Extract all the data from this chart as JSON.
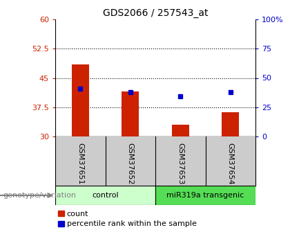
{
  "title": "GDS2066 / 257543_at",
  "samples": [
    "GSM37651",
    "GSM37652",
    "GSM37653",
    "GSM37654"
  ],
  "bar_values": [
    48.5,
    41.5,
    33.0,
    36.2
  ],
  "dot_values": [
    42.2,
    41.3,
    40.3,
    41.3
  ],
  "bar_color": "#cc2200",
  "dot_color": "#0000cc",
  "ylim_left": [
    30,
    60
  ],
  "ylim_right": [
    0,
    100
  ],
  "yticks_left": [
    30,
    37.5,
    45,
    52.5,
    60
  ],
  "yticks_right": [
    0,
    25,
    50,
    75,
    100
  ],
  "ytick_labels_left": [
    "30",
    "37.5",
    "45",
    "52.5",
    "60"
  ],
  "ytick_labels_right": [
    "0",
    "25",
    "50",
    "75",
    "100%"
  ],
  "hline_ticks": [
    37.5,
    45,
    52.5
  ],
  "groups": [
    {
      "label": "control",
      "indices": [
        0,
        1
      ],
      "color": "#ccffcc"
    },
    {
      "label": "miR319a transgenic",
      "indices": [
        2,
        3
      ],
      "color": "#55dd55"
    }
  ],
  "sample_box_color": "#cccccc",
  "legend_count_label": "count",
  "legend_pct_label": "percentile rank within the sample",
  "genotype_label": "genotype/variation"
}
